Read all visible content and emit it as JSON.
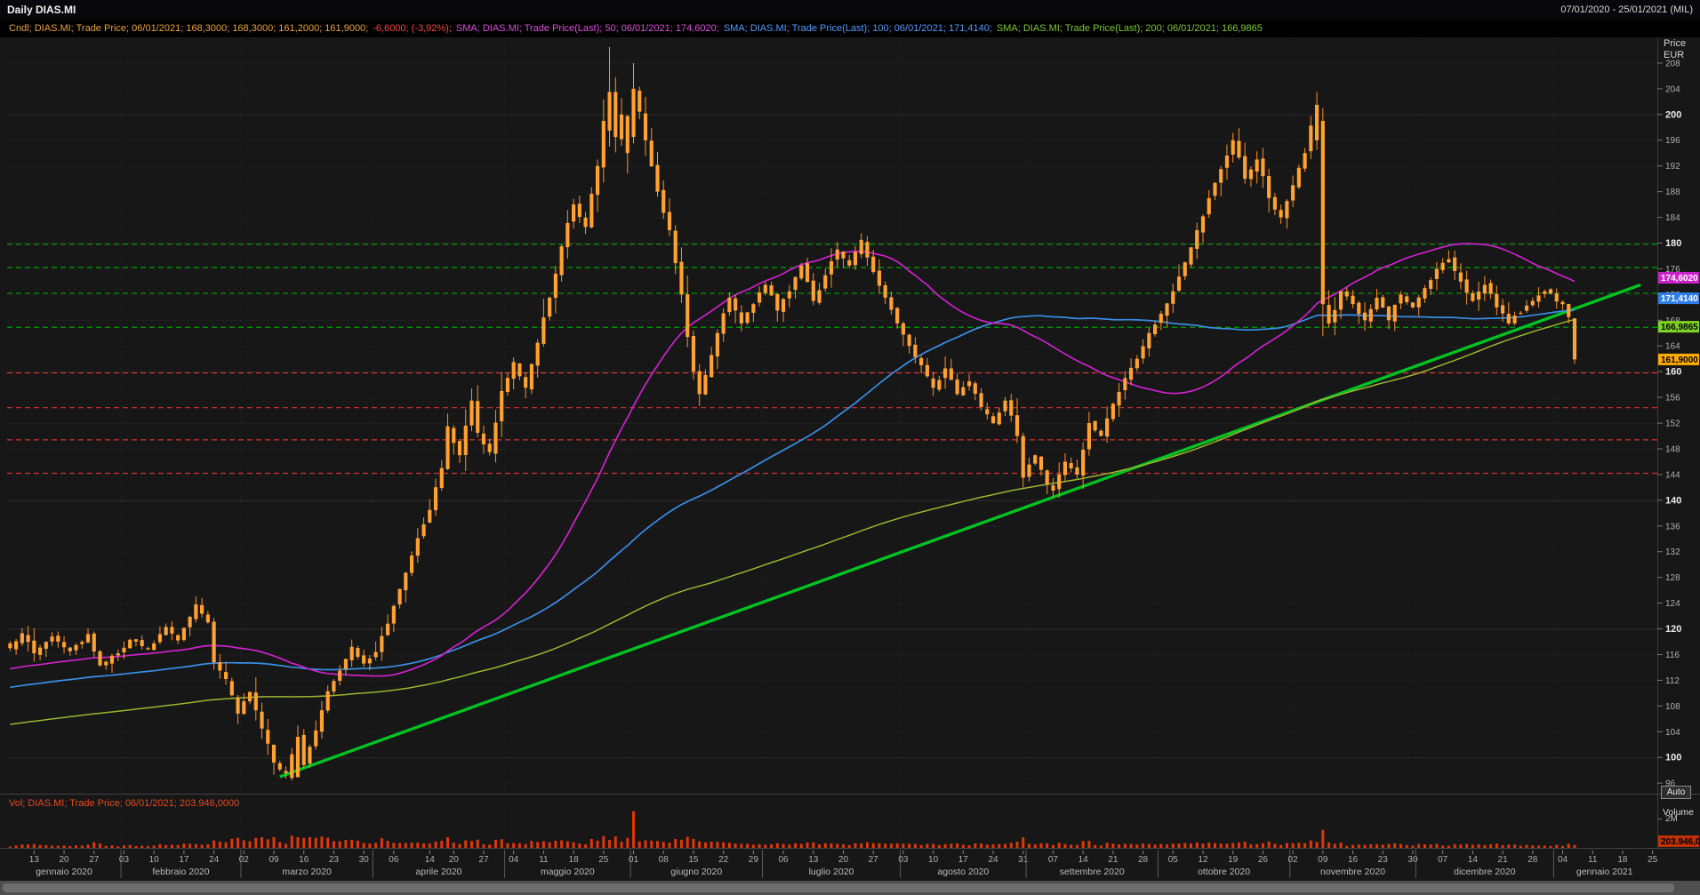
{
  "title_bar": {
    "title": "Daily DIAS.MI",
    "date_range": "07/01/2020 - 25/01/2021 (MIL)"
  },
  "legend": {
    "segments": [
      {
        "name": "candle",
        "text": "Cndl; DIAS.MI; Trade Price; 06/01/2021; 168,3000; 168,3000; 161,2000; 161,9000;",
        "color": "#eba23a"
      },
      {
        "name": "change",
        "text": "-6,6000; (-3,92%);",
        "color": "#ff4040"
      },
      {
        "name": "sma50",
        "text": "SMA; DIAS.MI; Trade Price(Last);  50; 06/01/2021; 174,6020;",
        "color": "#e14be1"
      },
      {
        "name": "sma100",
        "text": "SMA; DIAS.MI; Trade Price(Last);  100; 06/01/2021; 171,4140;",
        "color": "#4f9bff"
      },
      {
        "name": "sma200",
        "text": "SMA; DIAS.MI; Trade Price(Last);  200; 06/01/2021; 166,9865",
        "color": "#7ec832"
      }
    ]
  },
  "price_axis": {
    "title_line1": "Price",
    "title_line2": "EUR",
    "min": 96,
    "max": 208,
    "step": 4,
    "bold_every": 20
  },
  "price_tags": [
    {
      "name": "sma50",
      "label": "174,6020",
      "value": 174.602,
      "bg": "#cc22cc",
      "fg": "#ffffff"
    },
    {
      "name": "sma100",
      "label": "171,4140",
      "value": 171.414,
      "bg": "#2e7fe8",
      "fg": "#ffffff"
    },
    {
      "name": "sma200",
      "label": "166,9865",
      "value": 166.9865,
      "bg": "#7ed321",
      "fg": "#000000"
    },
    {
      "name": "last-price",
      "label": "161,9000",
      "value": 161.9,
      "bg": "#ffaa00",
      "fg": "#000000"
    }
  ],
  "auto_button": {
    "label": "Auto"
  },
  "volume_pane": {
    "legend": "Vol; DIAS.MI; Trade Price; 06/01/2021; 203.946,0000",
    "legend_color": "#e8491f",
    "axis_title": "Volume",
    "tick_label": "2M",
    "tag_label": "203.946,0",
    "tag_bg": "#c03000",
    "tag_fg": "#000000",
    "bar_color": "#dd3808"
  },
  "colors": {
    "background": "#171717",
    "candle": "#ffa232",
    "candle_wick": "#ff9228",
    "sma50": "#cc22cc",
    "sma100": "#3a8ee6",
    "sma200": "#9cb432",
    "trendline": "#00c222",
    "green_level": "#00a000",
    "red_level": "#d03030",
    "grid_major": "#2c2c2c",
    "grid_minor": "#1e1e1e",
    "month_grid": "#232323",
    "axis_text": "#b0b0b0",
    "axis_text_bold": "#ececec"
  },
  "chart_data": {
    "type": "candlestick",
    "symbol": "DIAS.MI",
    "interval": "Daily",
    "title": "Daily DIAS.MI",
    "period_shown": "07/01/2020 - 25/01/2021",
    "currency": "EUR",
    "price_axis": {
      "min": 96,
      "max": 208,
      "tick_step": 4
    },
    "x_axis": {
      "start_date": "2020-01-07",
      "end_date": "2021-01-25",
      "last_data_date": "2021-01-06",
      "months": [
        {
          "label": "gennaio 2020",
          "ym": "2020-01",
          "days": [
            "13",
            "20",
            "27"
          ]
        },
        {
          "label": "febbraio 2020",
          "ym": "2020-02",
          "days": [
            "03",
            "10",
            "17",
            "24"
          ]
        },
        {
          "label": "marzo 2020",
          "ym": "2020-03",
          "days": [
            "02",
            "09",
            "16",
            "23",
            "30"
          ]
        },
        {
          "label": "aprile 2020",
          "ym": "2020-04",
          "days": [
            "06",
            "14",
            "20",
            "27"
          ]
        },
        {
          "label": "maggio 2020",
          "ym": "2020-05",
          "days": [
            "04",
            "11",
            "18",
            "25"
          ]
        },
        {
          "label": "giugno 2020",
          "ym": "2020-06",
          "days": [
            "01",
            "08",
            "15",
            "22",
            "29"
          ]
        },
        {
          "label": "luglio 2020",
          "ym": "2020-07",
          "days": [
            "06",
            "13",
            "20",
            "27"
          ]
        },
        {
          "label": "agosto 2020",
          "ym": "2020-08",
          "days": [
            "03",
            "10",
            "17",
            "24",
            "31"
          ]
        },
        {
          "label": "settembre 2020",
          "ym": "2020-09",
          "days": [
            "07",
            "14",
            "21",
            "28"
          ]
        },
        {
          "label": "ottobre 2020",
          "ym": "2020-10",
          "days": [
            "05",
            "12",
            "19",
            "26"
          ]
        },
        {
          "label": "novembre 2020",
          "ym": "2020-11",
          "days": [
            "02",
            "09",
            "16",
            "23",
            "30"
          ]
        },
        {
          "label": "dicembre 2020",
          "ym": "2020-12",
          "days": [
            "07",
            "14",
            "21",
            "28"
          ]
        },
        {
          "label": "gennaio 2021",
          "ym": "2021-01",
          "days": [
            "04",
            "11",
            "18",
            "25"
          ]
        }
      ]
    },
    "last_candle": {
      "date": "06/01/2021",
      "open": 168.3,
      "high": 168.3,
      "low": 161.2,
      "close": 161.9,
      "net_change": -6.6,
      "pct_change": -3.92
    },
    "close_keypoints": [
      [
        "2020-01-07",
        117.0
      ],
      [
        "2020-01-09",
        119.3
      ],
      [
        "2020-01-13",
        116.2
      ],
      [
        "2020-01-16",
        118.8
      ],
      [
        "2020-01-21",
        116.5
      ],
      [
        "2020-01-24",
        119.2
      ],
      [
        "2020-01-28",
        114.3
      ],
      [
        "2020-01-31",
        116.2
      ],
      [
        "2020-02-04",
        118.3
      ],
      [
        "2020-02-07",
        116.8
      ],
      [
        "2020-02-12",
        120.3
      ],
      [
        "2020-02-14",
        118.2
      ],
      [
        "2020-02-19",
        123.8
      ],
      [
        "2020-02-21",
        121.0
      ],
      [
        "2020-02-24",
        114.8
      ],
      [
        "2020-02-26",
        112.2
      ],
      [
        "2020-02-28",
        106.8
      ],
      [
        "2020-03-03",
        110.2
      ],
      [
        "2020-03-05",
        104.5
      ],
      [
        "2020-03-09",
        99.2
      ],
      [
        "2020-03-12",
        96.8
      ],
      [
        "2020-03-13",
        103.2
      ],
      [
        "2020-03-16",
        98.8
      ],
      [
        "2020-03-18",
        104.2
      ],
      [
        "2020-03-20",
        110.3
      ],
      [
        "2020-03-24",
        113.5
      ],
      [
        "2020-03-26",
        117.2
      ],
      [
        "2020-03-30",
        114.6
      ],
      [
        "2020-04-01",
        116.4
      ],
      [
        "2020-04-03",
        120.8
      ],
      [
        "2020-04-07",
        126.2
      ],
      [
        "2020-04-09",
        131.4
      ],
      [
        "2020-04-14",
        138.5
      ],
      [
        "2020-04-16",
        145.0
      ],
      [
        "2020-04-17",
        151.5
      ],
      [
        "2020-04-21",
        147.0
      ],
      [
        "2020-04-23",
        155.5
      ],
      [
        "2020-04-24",
        150.5
      ],
      [
        "2020-04-28",
        147.5
      ],
      [
        "2020-04-30",
        157.0
      ],
      [
        "2020-05-04",
        161.5
      ],
      [
        "2020-05-06",
        157.5
      ],
      [
        "2020-05-08",
        164.5
      ],
      [
        "2020-05-12",
        171.5
      ],
      [
        "2020-05-14",
        179.5
      ],
      [
        "2020-05-18",
        186.0
      ],
      [
        "2020-05-20",
        182.5
      ],
      [
        "2020-05-22",
        192.0
      ],
      [
        "2020-05-25",
        199.0
      ],
      [
        "2020-05-26",
        203.5
      ],
      [
        "2020-05-27",
        196.5
      ],
      [
        "2020-05-28",
        200.0
      ],
      [
        "2020-05-29",
        194.0
      ],
      [
        "2020-06-01",
        204.0
      ],
      [
        "2020-06-03",
        196.0
      ],
      [
        "2020-06-05",
        188.0
      ],
      [
        "2020-06-09",
        182.0
      ],
      [
        "2020-06-11",
        172.0
      ],
      [
        "2020-06-15",
        160.0
      ],
      [
        "2020-06-16",
        156.5
      ],
      [
        "2020-06-19",
        166.0
      ],
      [
        "2020-06-23",
        171.5
      ],
      [
        "2020-06-25",
        167.5
      ],
      [
        "2020-06-29",
        170.5
      ],
      [
        "2020-07-01",
        173.5
      ],
      [
        "2020-07-03",
        169.5
      ],
      [
        "2020-07-07",
        172.5
      ],
      [
        "2020-07-09",
        176.5
      ],
      [
        "2020-07-13",
        171.0
      ],
      [
        "2020-07-15",
        175.0
      ],
      [
        "2020-07-17",
        179.0
      ],
      [
        "2020-07-21",
        176.5
      ],
      [
        "2020-07-23",
        180.5
      ],
      [
        "2020-07-27",
        175.5
      ],
      [
        "2020-07-29",
        171.5
      ],
      [
        "2020-07-31",
        167.5
      ],
      [
        "2020-08-04",
        164.0
      ],
      [
        "2020-08-06",
        161.0
      ],
      [
        "2020-08-10",
        157.5
      ],
      [
        "2020-08-12",
        160.5
      ],
      [
        "2020-08-14",
        156.5
      ],
      [
        "2020-08-18",
        158.5
      ],
      [
        "2020-08-20",
        154.5
      ],
      [
        "2020-08-24",
        152.0
      ],
      [
        "2020-08-26",
        155.5
      ],
      [
        "2020-08-28",
        150.0
      ],
      [
        "2020-08-31",
        143.5
      ],
      [
        "2020-09-02",
        147.0
      ],
      [
        "2020-09-04",
        142.5
      ],
      [
        "2020-09-07",
        141.5
      ],
      [
        "2020-09-09",
        146.0
      ],
      [
        "2020-09-11",
        144.0
      ],
      [
        "2020-09-15",
        152.0
      ],
      [
        "2020-09-17",
        150.0
      ],
      [
        "2020-09-21",
        155.0
      ],
      [
        "2020-09-23",
        159.0
      ],
      [
        "2020-09-25",
        162.0
      ],
      [
        "2020-09-29",
        166.0
      ],
      [
        "2020-10-01",
        169.0
      ],
      [
        "2020-10-05",
        172.5
      ],
      [
        "2020-10-07",
        177.0
      ],
      [
        "2020-10-09",
        182.0
      ],
      [
        "2020-10-13",
        187.0
      ],
      [
        "2020-10-15",
        191.5
      ],
      [
        "2020-10-19",
        196.0
      ],
      [
        "2020-10-21",
        190.0
      ],
      [
        "2020-10-23",
        193.0
      ],
      [
        "2020-10-27",
        187.0
      ],
      [
        "2020-10-29",
        184.0
      ],
      [
        "2020-11-02",
        189.0
      ],
      [
        "2020-11-04",
        194.0
      ],
      [
        "2020-11-06",
        201.5
      ],
      [
        "2020-11-09",
        170.5
      ],
      [
        "2020-11-10",
        167.5
      ],
      [
        "2020-11-12",
        172.5
      ],
      [
        "2020-11-16",
        170.5
      ],
      [
        "2020-11-18",
        168.0
      ],
      [
        "2020-11-20",
        171.5
      ],
      [
        "2020-11-24",
        168.0
      ],
      [
        "2020-11-26",
        172.0
      ],
      [
        "2020-11-30",
        170.0
      ],
      [
        "2020-12-02",
        173.0
      ],
      [
        "2020-12-04",
        176.0
      ],
      [
        "2020-12-08",
        177.5
      ],
      [
        "2020-12-10",
        174.0
      ],
      [
        "2020-12-14",
        171.0
      ],
      [
        "2020-12-16",
        173.5
      ],
      [
        "2020-12-18",
        170.0
      ],
      [
        "2020-12-22",
        167.5
      ],
      [
        "2020-12-28",
        171.0
      ],
      [
        "2020-12-30",
        172.5
      ],
      [
        "2021-01-04",
        170.5
      ],
      [
        "2021-01-05",
        168.5
      ],
      [
        "2021-01-06",
        161.9
      ]
    ],
    "candle_overrides": {
      "2020-03-12": {
        "o": 100.5,
        "h": 101.5,
        "l": 96.4,
        "c": 96.8
      },
      "2020-05-26": {
        "o": 197.5,
        "h": 210.5,
        "l": 195.0,
        "c": 203.5
      },
      "2020-06-01": {
        "o": 196.5,
        "h": 208.0,
        "l": 195.5,
        "c": 204.0
      },
      "2020-08-31": {
        "o": 150.0,
        "h": 150.5,
        "l": 142.0,
        "c": 143.5
      },
      "2020-11-06": {
        "o": 196.0,
        "h": 203.5,
        "l": 194.5,
        "c": 201.5
      },
      "2020-11-09": {
        "o": 199.0,
        "h": 201.0,
        "l": 165.5,
        "c": 170.5
      },
      "2021-01-06": {
        "o": 168.3,
        "h": 168.3,
        "l": 161.2,
        "c": 161.9
      }
    },
    "sma_overlays": [
      {
        "period": 50,
        "last_value": 174.602,
        "color": "#cc22cc"
      },
      {
        "period": 100,
        "last_value": 171.414,
        "color": "#3a8ee6"
      },
      {
        "period": 200,
        "last_value": 166.9865,
        "color": "#9cb432"
      }
    ],
    "trendline": {
      "from": [
        "2020-03-10",
        97.0
      ],
      "to": [
        "2021-01-21",
        173.5
      ],
      "color": "#00c222"
    },
    "levels": {
      "green_dashed": [
        179.8,
        176.2,
        172.2,
        166.9
      ],
      "red_dashed": [
        159.8,
        154.4,
        149.4,
        144.2
      ]
    },
    "volume": {
      "unit": "M",
      "max_scale": 2.6,
      "last": 203946,
      "axis_tick": 2,
      "overrides": {
        "2020-02-24": 0.52,
        "2020-03-12": 0.85,
        "2020-03-13": 0.75,
        "2020-03-16": 0.7,
        "2020-04-16": 0.5,
        "2020-06-01": 2.55,
        "2020-11-09": 1.25,
        "2021-01-06": 0.204
      }
    }
  }
}
